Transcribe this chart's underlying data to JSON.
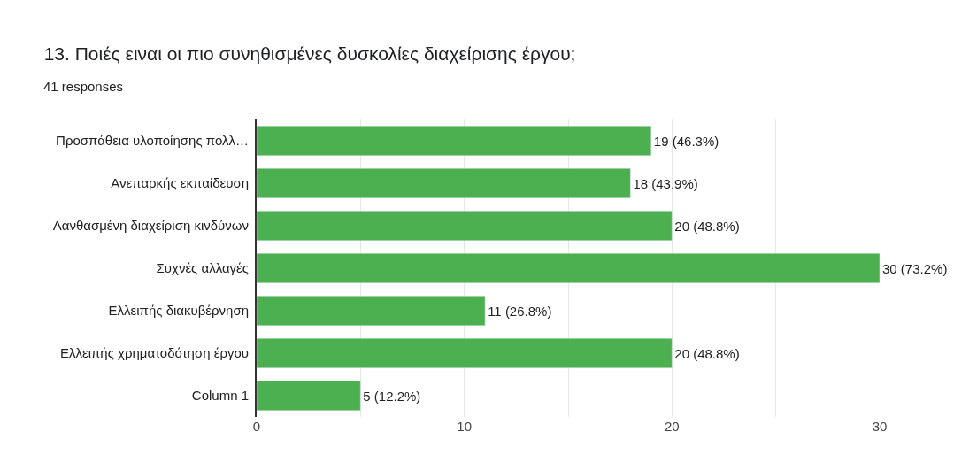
{
  "chart_data": {
    "type": "bar",
    "orientation": "horizontal",
    "title": "13. Ποιές ειναι οι πιο συνηθισμένες δυσκολίες διαχείρισης έργου;",
    "subtitle": "41 responses",
    "categories": [
      "Προσπάθεια υλοποίησης πολλ…",
      "Ανεπαρκής εκπαίδευση",
      "Λανθασμένη διαχείριση κινδύνων",
      "Συχνές αλλαγές",
      "Ελλειπής διακυβέρνηση",
      "Ελλειπής χρηματοδότηση έργου",
      "Column 1"
    ],
    "values": [
      19,
      18,
      20,
      30,
      11,
      20,
      5
    ],
    "value_labels": [
      "19 (46.3%)",
      "18 (43.9%)",
      "20 (48.8%)",
      "30 (73.2%)",
      "11 (26.8%)",
      "20 (48.8%)",
      "5 (12.2%)"
    ],
    "color": "#4caf50",
    "xlim": [
      0,
      30
    ],
    "xticks": [
      0,
      {
        "value": 5,
        "label": null
      },
      10,
      {
        "value": 15,
        "label": null
      },
      20,
      {
        "value": 25,
        "label": null
      },
      30
    ],
    "grid": "x"
  }
}
